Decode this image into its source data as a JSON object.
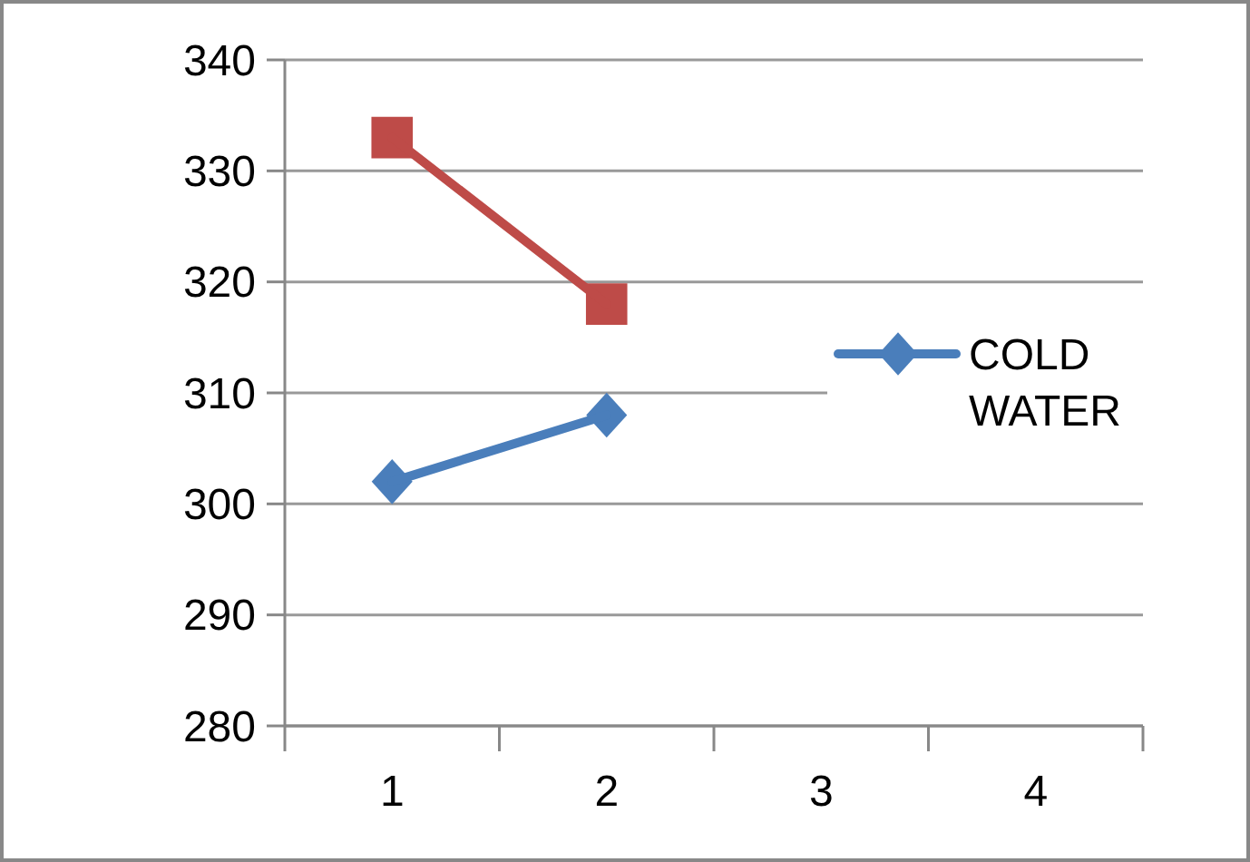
{
  "chart_data": {
    "type": "line",
    "categories": [
      "1",
      "2",
      "3",
      "4"
    ],
    "series": [
      {
        "name": "COLD WATER",
        "color": "#4a7ebb",
        "marker": "diamond",
        "values": [
          302,
          308,
          null,
          null
        ]
      },
      {
        "color": "#be4b48",
        "marker": "square",
        "values": [
          333,
          318,
          null,
          null
        ]
      }
    ],
    "ylim": [
      280,
      340
    ],
    "yticks": [
      280,
      290,
      300,
      310,
      320,
      330,
      340
    ],
    "grid": "y",
    "legend": "right"
  }
}
